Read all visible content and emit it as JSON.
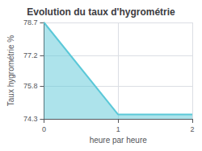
{
  "chart_data": {
    "type": "area",
    "title": "Evolution du taux d'hygrométrie",
    "xlabel": "heure par heure",
    "ylabel": "Taux hygrométrie %",
    "x": [
      0,
      1,
      2
    ],
    "values": [
      78.7,
      74.5,
      74.5
    ],
    "color": "#5bc8d8",
    "xlim": [
      0,
      2
    ],
    "xticks": [
      0,
      1,
      2
    ],
    "ylim": [
      74.3,
      78.7
    ],
    "yticks": [
      74.3,
      75.8,
      77.2,
      78.7
    ],
    "grid": true
  }
}
